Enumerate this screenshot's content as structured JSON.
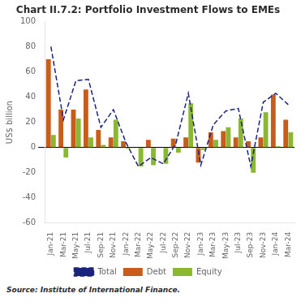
{
  "chart_data": {
    "type": "bar",
    "title": "Chart II.7.2: Portfolio Investment Flows to EMEs",
    "ylabel": "US$ billion",
    "source": "Source: Institute of International Finance.",
    "categories": [
      "Jan-21",
      "Mar-21",
      "May-21",
      "Jul-21",
      "Sep-21",
      "Nov-21",
      "Jan-22",
      "Mar-22",
      "May-22",
      "Jul-22",
      "Sep-22",
      "Nov-22",
      "Jan-23",
      "Mar-23",
      "May-23",
      "Jul-23",
      "Sep-23",
      "Nov-23",
      "Jan-24",
      "Mar-24"
    ],
    "series": [
      {
        "name": "Debt",
        "type": "bar",
        "color": "#c85c1a",
        "values": [
          70,
          30,
          30,
          46,
          14,
          8,
          5,
          0,
          6,
          0,
          7,
          8,
          -12,
          12,
          13,
          8,
          5,
          8,
          42,
          22
        ]
      },
      {
        "name": "Equity",
        "type": "bar",
        "color": "#8ab832",
        "values": [
          10,
          -8,
          23,
          8,
          2,
          22,
          -1,
          -15,
          -14,
          -13,
          -4,
          35,
          -2,
          6,
          16,
          23,
          -20,
          28,
          1,
          12
        ]
      },
      {
        "name": "Total",
        "type": "line",
        "line_style": "dashed",
        "color": "#1a237e",
        "values": [
          80,
          22,
          53,
          54,
          16,
          30,
          4,
          -15,
          -8,
          -13,
          3,
          43,
          -14,
          18,
          29,
          31,
          -15,
          36,
          43,
          34
        ]
      }
    ],
    "ylim": [
      -60,
      100
    ],
    "yticks": [
      -60,
      -40,
      -20,
      0,
      20,
      40,
      60,
      80,
      100
    ],
    "grid": false,
    "legend": "bottom"
  }
}
